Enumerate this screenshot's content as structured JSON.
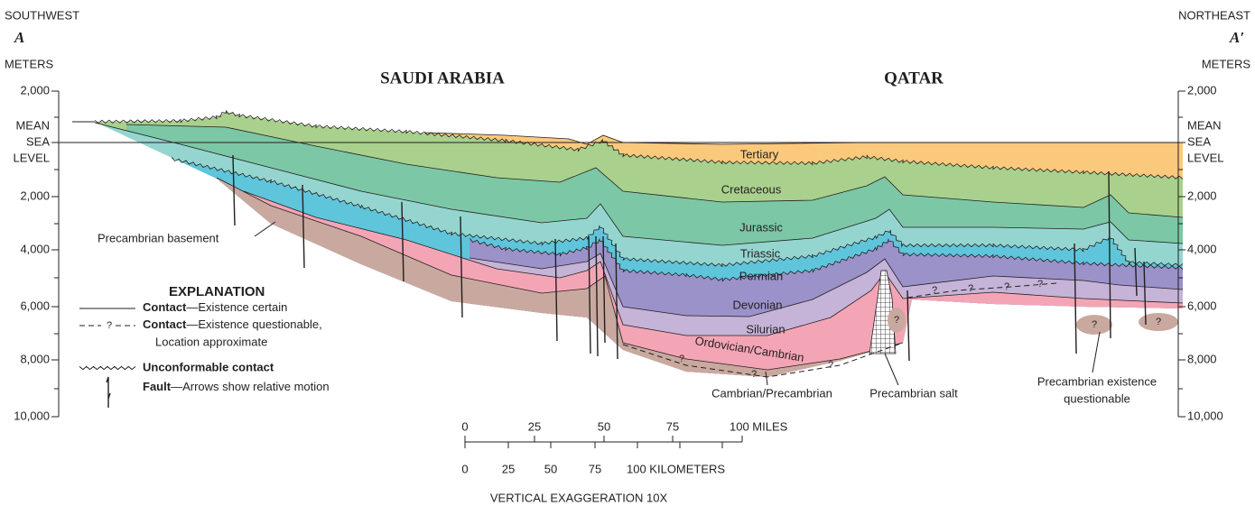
{
  "header": {
    "left_direction": "SOUTHWEST",
    "left_label": "A",
    "left_unit": "METERS",
    "right_direction": "NORTHEAST",
    "right_label": "A′",
    "right_unit": "METERS"
  },
  "regions": [
    "SAUDI ARABIA",
    "QATAR"
  ],
  "left_axis": [
    "2,000",
    "MEAN",
    "SEA",
    "LEVEL",
    "2,000",
    "4,000",
    "6,000",
    "8,000",
    "10,000"
  ],
  "right_axis": [
    "2,000",
    "MEAN",
    "SEA",
    "LEVEL",
    "2,000",
    "4,000",
    "6,000",
    "8,000",
    "10,000"
  ],
  "layers": [
    "Tertiary",
    "Cretaceous",
    "Jurassic",
    "Triassic",
    "Permian",
    "Devonian",
    "Silurian",
    "Ordovician/Cambrian"
  ],
  "annotations": [
    "Precambrian basement",
    "Cambrian/Precambrian",
    "Precambrian salt",
    "Precambrian existence",
    "questionable"
  ],
  "question_marks": [
    "?",
    "?",
    "?",
    "?",
    "?",
    "?",
    "?",
    "?",
    "?",
    "?"
  ],
  "explanation": {
    "title": "EXPLANATION",
    "items": [
      {
        "term": "Contact",
        "text": "—Existence certain"
      },
      {
        "term": "Contact",
        "text": "—Existence questionable,",
        "text2": "Location approximate",
        "mark": "?"
      },
      {
        "term": "Unconformable contact"
      },
      {
        "term": "Fault",
        "text": "—Arrows show relative motion"
      }
    ]
  },
  "scale": {
    "miles": [
      "0",
      "25",
      "50",
      "75",
      "100 MILES"
    ],
    "kilometers": [
      "0",
      "25",
      "50",
      "75",
      "100 KILOMETERS"
    ],
    "note": "VERTICAL EXAGGERATION 10X"
  }
}
